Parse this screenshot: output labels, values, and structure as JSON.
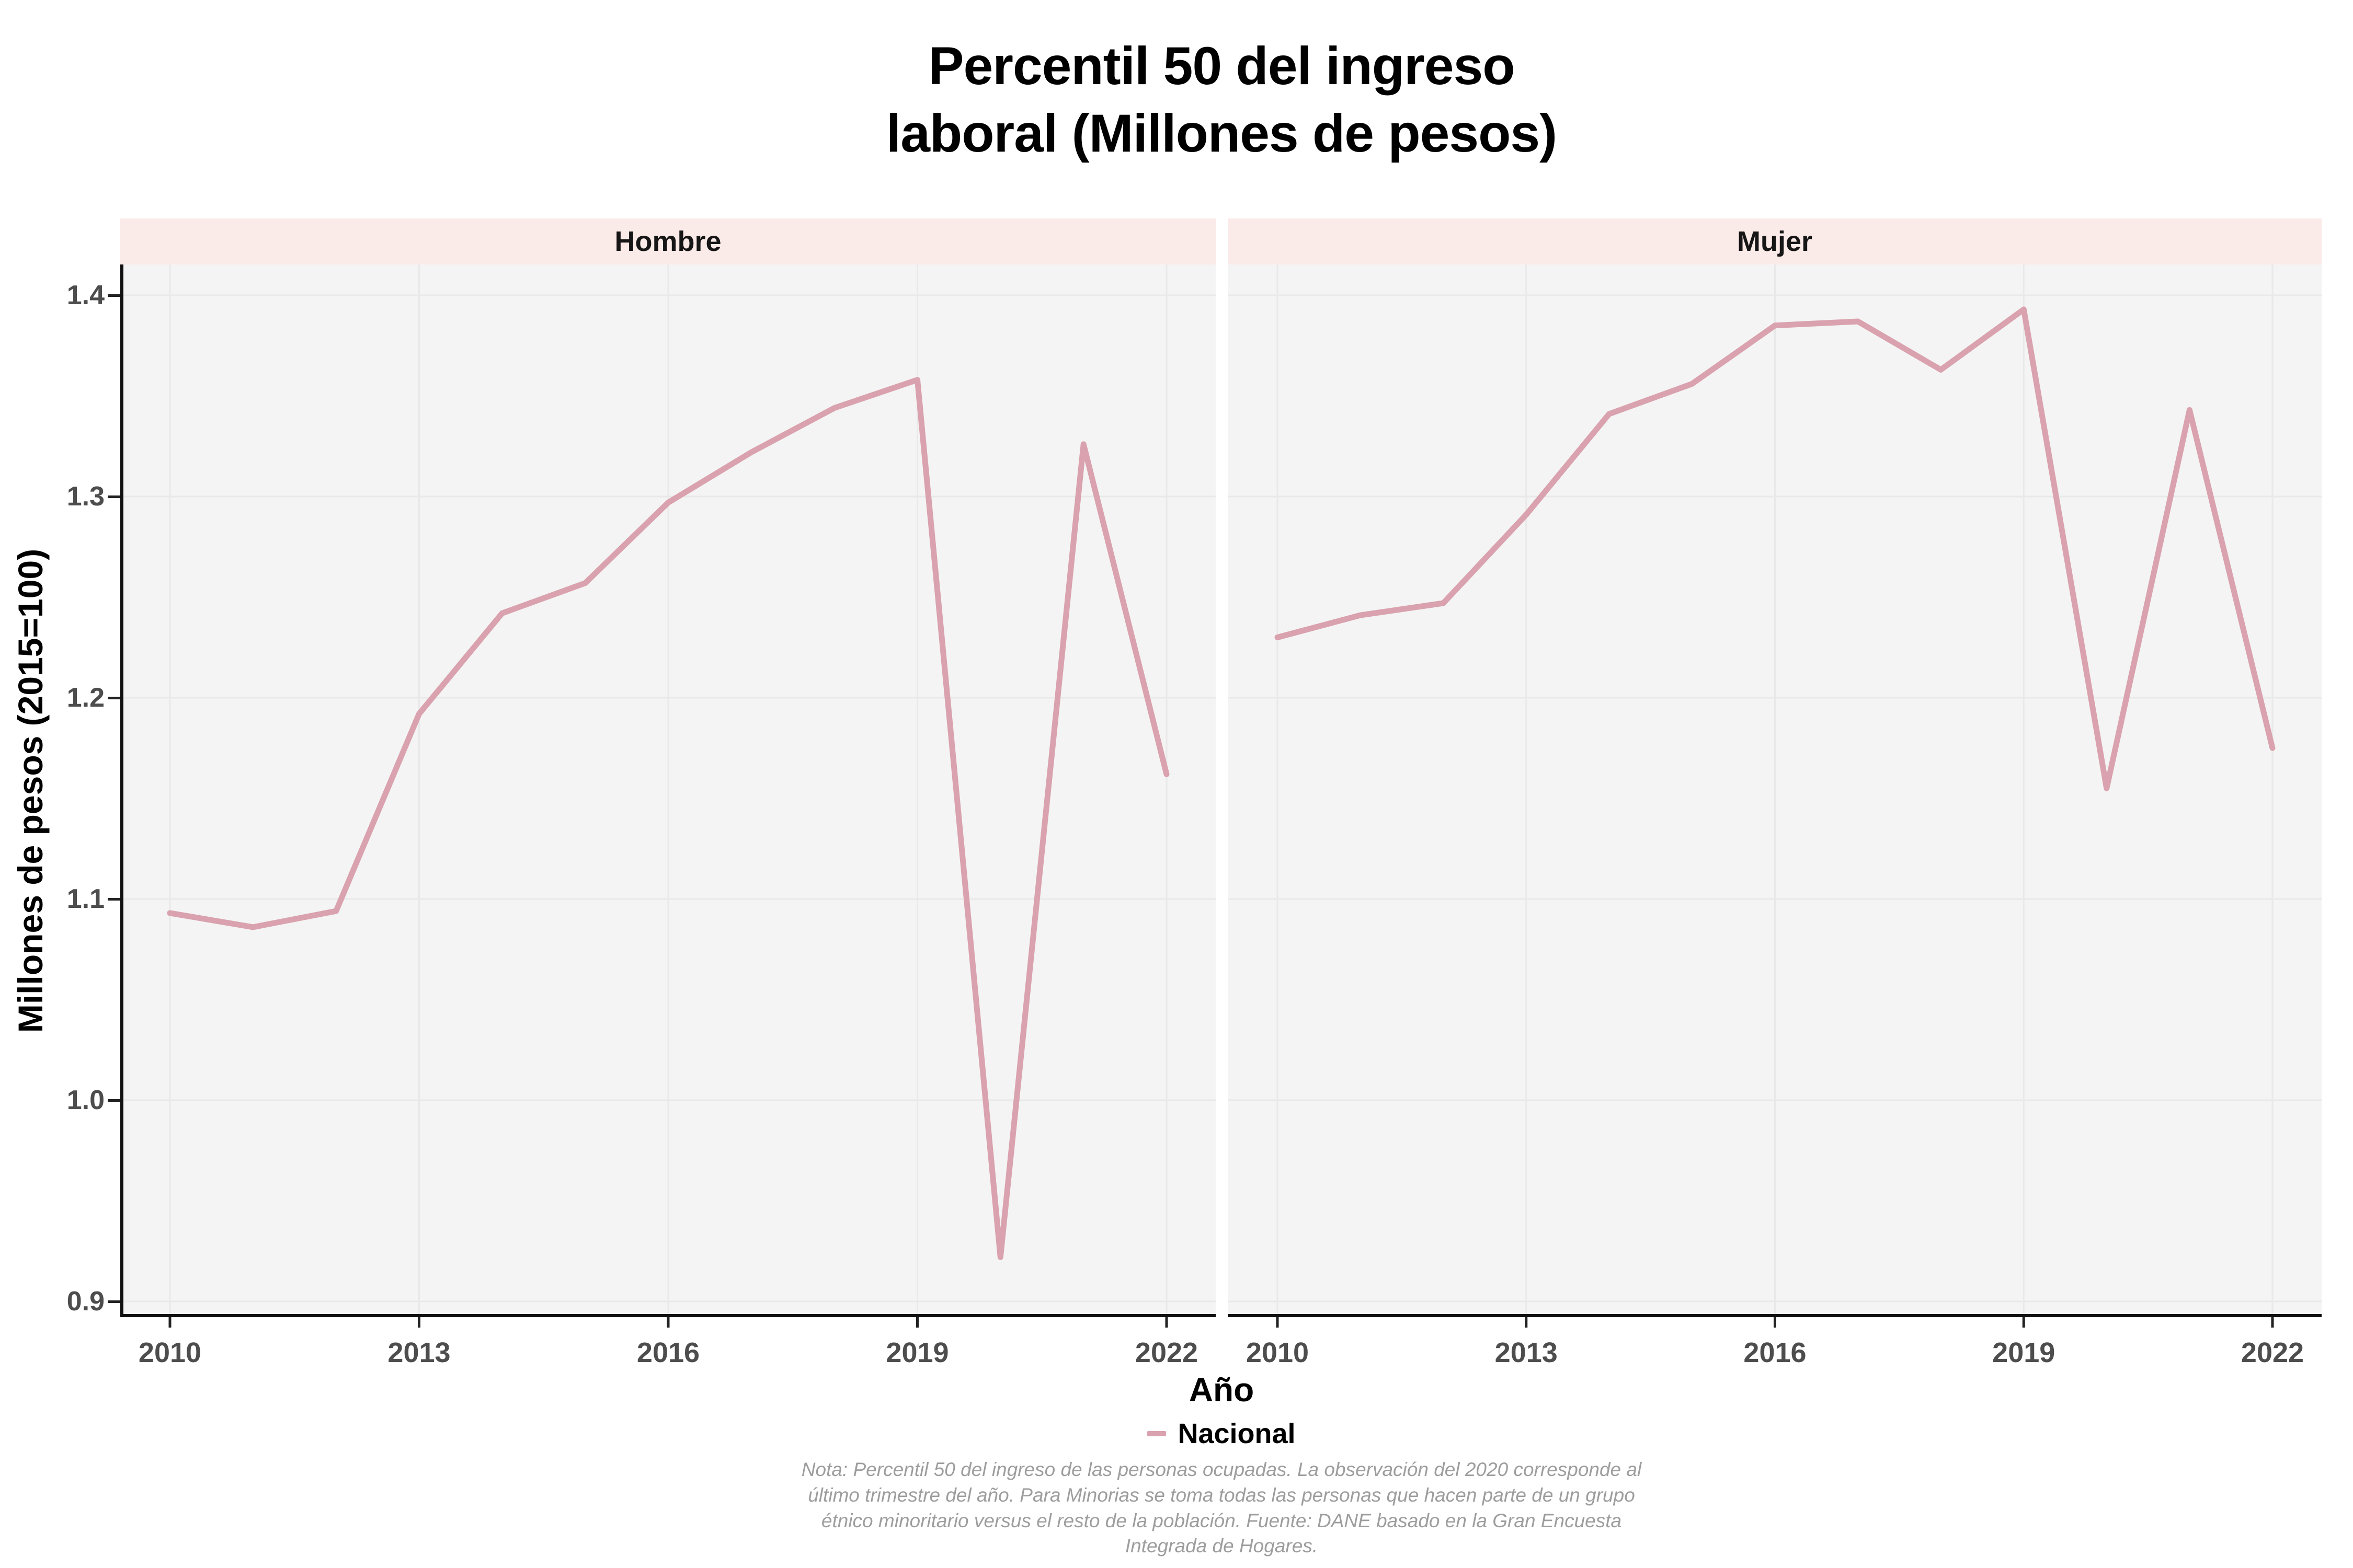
{
  "title": "Percentil 50 del ingreso\nlaboral (Millones de pesos)",
  "x_axis": {
    "title": "Año"
  },
  "y_axis": {
    "title": "Millones de pesos (2015=100)"
  },
  "legend": {
    "label": "Nacional"
  },
  "note": "Nota: Percentil 50 del ingreso de las personas ocupadas. La observación del 2020 corresponde al\núltimo trimestre del año. Para Minorias se toma todas las personas que hacen parte de un grupo\nétnico minoritario versus el resto de la población. Fuente: DANE basado en la Gran Encuesta\nIntegrada de Hogares.",
  "colors": {
    "line": "#d9a2ae",
    "strip_bg": "#faeae8",
    "panel_bg": "#f4f4f4",
    "grid": "#e9e9e9",
    "axis_line": "#111111",
    "tick_mark": "#222222",
    "axis_text": "#4d4d4d",
    "note_text": "#9d9d9d"
  },
  "chart_data": {
    "type": "line",
    "title": "Percentil 50 del ingreso laboral (Millones de pesos)",
    "xlabel": "Año",
    "ylabel": "Millones de pesos (2015=100)",
    "x": [
      2010,
      2011,
      2012,
      2013,
      2014,
      2015,
      2016,
      2017,
      2018,
      2019,
      2020,
      2021,
      2022
    ],
    "x_ticks": [
      2010,
      2013,
      2016,
      2019,
      2022
    ],
    "y_ticks": [
      0.9,
      1.0,
      1.1,
      1.2,
      1.3,
      1.4
    ],
    "ylim": [
      0.892,
      1.415
    ],
    "grid": true,
    "legend_position": "bottom",
    "series_name": "Nacional",
    "facets": [
      {
        "label": "Hombre",
        "series": [
          {
            "name": "Nacional",
            "values": [
              1.093,
              1.086,
              1.094,
              1.192,
              1.242,
              1.257,
              1.297,
              1.322,
              1.344,
              1.358,
              0.922,
              1.326,
              1.162
            ]
          }
        ]
      },
      {
        "label": "Mujer",
        "series": [
          {
            "name": "Nacional",
            "values": [
              1.23,
              1.241,
              1.247,
              1.291,
              1.341,
              1.356,
              1.385,
              1.387,
              1.363,
              1.393,
              1.155,
              1.343,
              1.175
            ]
          }
        ]
      }
    ]
  }
}
